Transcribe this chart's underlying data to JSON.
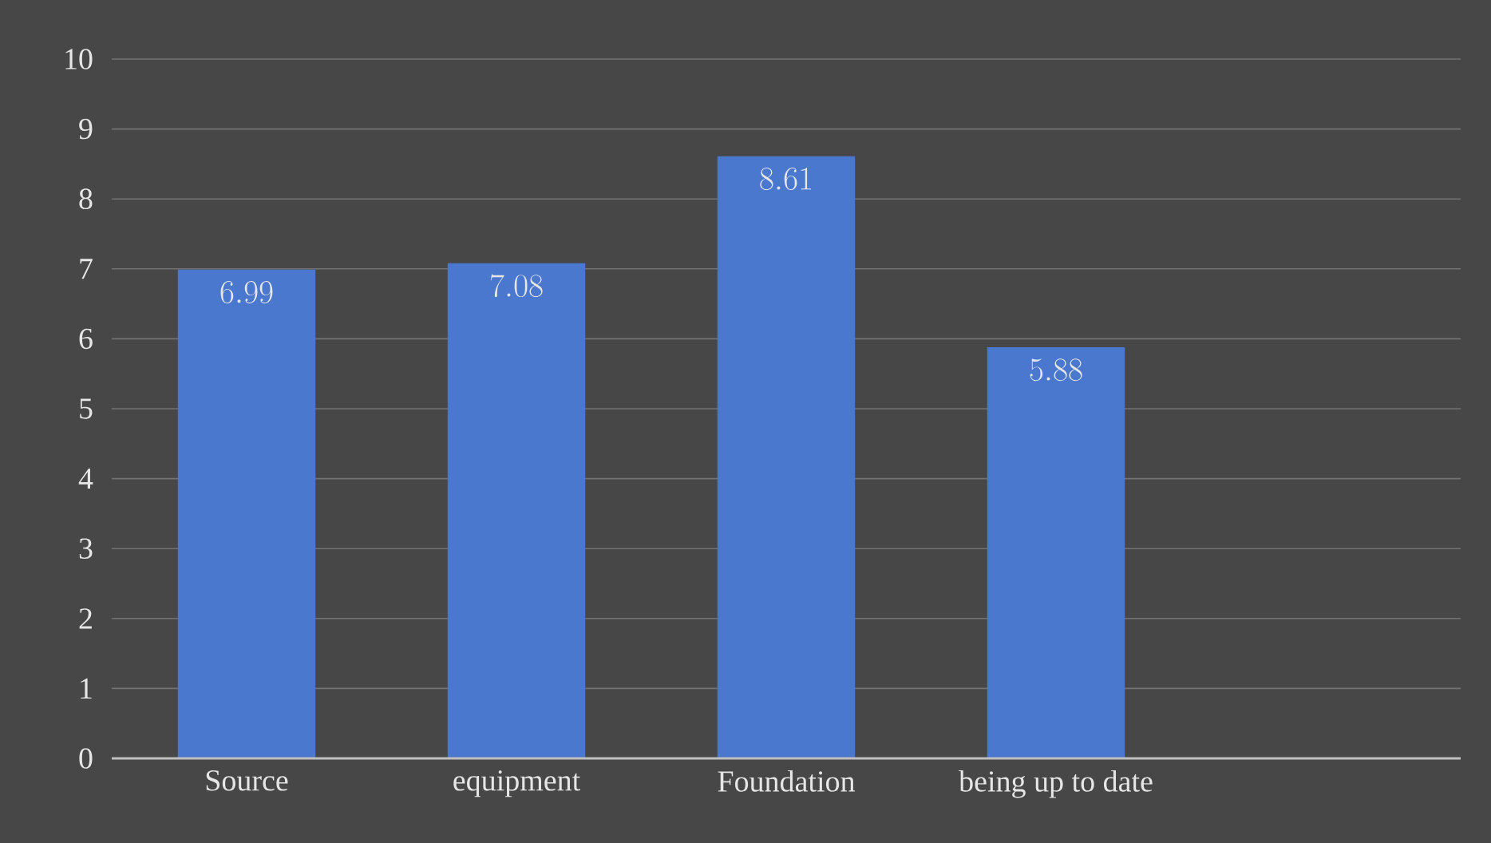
{
  "chart_data": {
    "type": "bar",
    "categories": [
      "Source",
      "equipment",
      "Foundation",
      "being up to date",
      null
    ],
    "values": [
      6.99,
      7.08,
      8.61,
      5.88,
      null
    ],
    "color": "#4a78cf",
    "ylim": [
      0,
      10
    ],
    "yticks": [
      0,
      1,
      2,
      3,
      4,
      5,
      6,
      7,
      8,
      9,
      10
    ],
    "grid": "y",
    "data_labels": true
  }
}
